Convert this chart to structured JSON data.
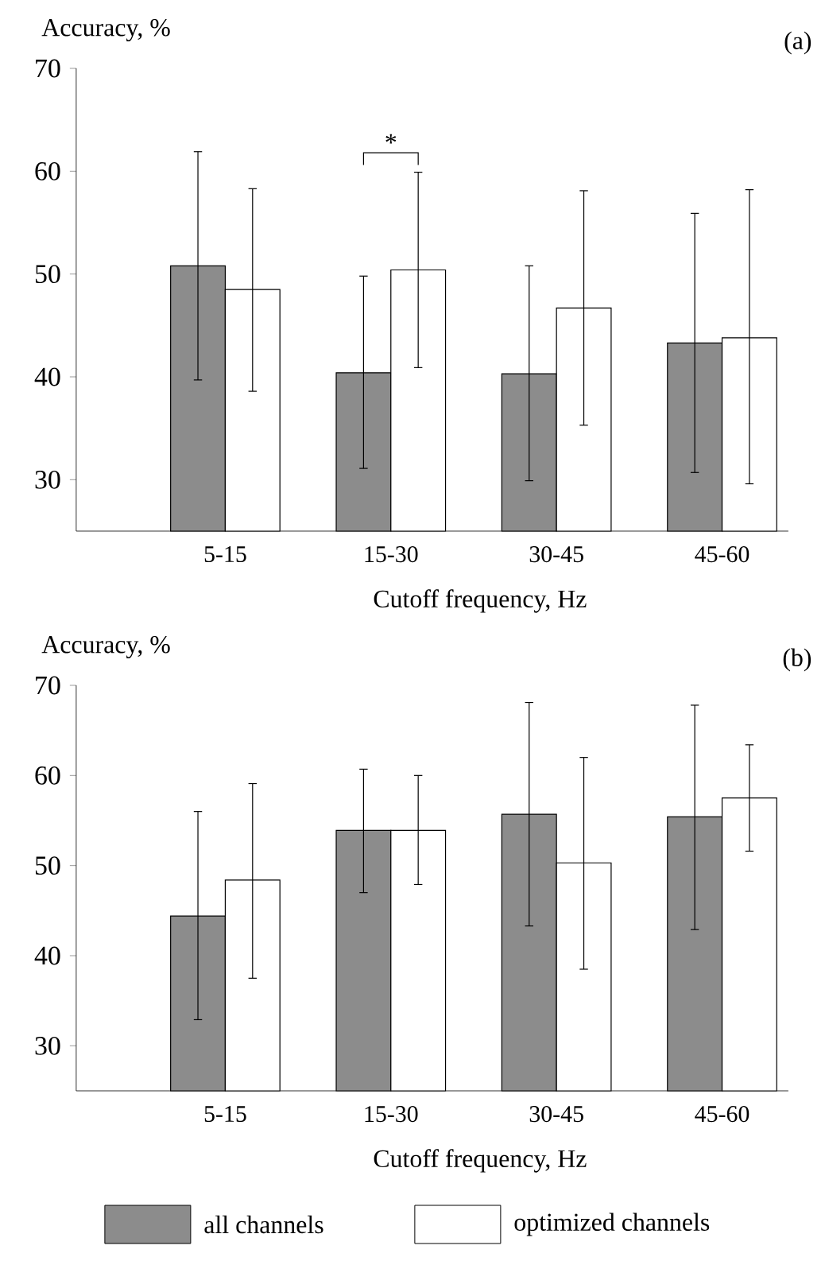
{
  "chart_data": [
    {
      "type": "bar",
      "categories": [
        "5-15",
        "15-30",
        "30-45",
        "45-60"
      ],
      "xlabel": "Cutoff frequency, Hz",
      "ylabel": "Accuracy, %",
      "ylim": [
        25,
        70
      ],
      "yticks": [
        30,
        40,
        50,
        60,
        70
      ],
      "legend": false,
      "series": [
        {
          "color": "#8c8c8c",
          "values": [
            50.8,
            40.4,
            40.3,
            43.3
          ],
          "errors": [
            [
              39.7,
              61.9
            ],
            [
              31.1,
              49.8
            ],
            [
              29.9,
              50.8
            ],
            [
              30.7,
              55.9
            ]
          ]
        },
        {
          "color": "#ffffff",
          "values": [
            48.5,
            50.4,
            46.7,
            43.8
          ],
          "errors": [
            [
              38.6,
              58.3
            ],
            [
              40.9,
              59.9
            ],
            [
              35.3,
              58.1
            ],
            [
              29.6,
              58.2
            ]
          ]
        }
      ],
      "title": "(a)",
      "annotations": [
        "*"
      ]
    },
    {
      "type": "bar",
      "categories": [
        "5-15",
        "15-30",
        "30-45",
        "45-60"
      ],
      "xlabel": "Cutoff frequency, Hz",
      "ylabel": "Accuracy, %",
      "ylim": [
        25,
        70
      ],
      "yticks": [
        30,
        40,
        50,
        60,
        70
      ],
      "legend": "bottom",
      "series": [
        {
          "name": "all channels",
          "color": "#8c8c8c",
          "values": [
            44.4,
            53.9,
            55.7,
            55.4
          ],
          "errors": [
            [
              32.9,
              56.0
            ],
            [
              47.0,
              60.7
            ],
            [
              43.3,
              68.1
            ],
            [
              42.9,
              67.8
            ]
          ]
        },
        {
          "name": "optimized channels",
          "color": "#ffffff",
          "values": [
            48.4,
            53.9,
            50.3,
            57.5
          ],
          "errors": [
            [
              37.5,
              59.1
            ],
            [
              47.9,
              60.0
            ],
            [
              38.5,
              62.0
            ],
            [
              51.6,
              63.4
            ]
          ]
        }
      ],
      "title": "(b)"
    }
  ]
}
